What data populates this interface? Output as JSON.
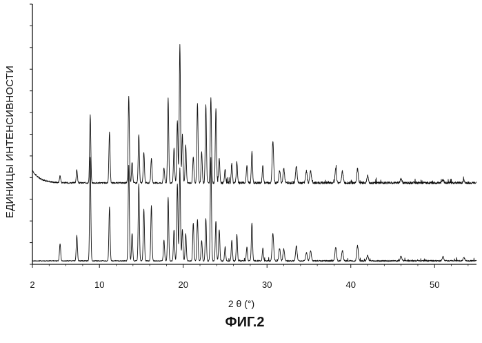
{
  "chart_data": {
    "type": "line",
    "title": "",
    "xlabel": "2 θ (°)",
    "ylabel": "ЕДИНИЦЫ ИНТЕНСИВНОСТИ",
    "xlim": [
      2,
      55
    ],
    "x_ticks": [
      2,
      10,
      20,
      30,
      40,
      50
    ],
    "x_tick_labels": [
      "2",
      "10",
      "20",
      "30",
      "40",
      "50"
    ],
    "grid": false,
    "legend": "none",
    "series": [
      {
        "baseline": 265,
        "peaks": [
          {
            "x": 5.3,
            "y": 10
          },
          {
            "x": 7.3,
            "y": 19
          },
          {
            "x": 8.9,
            "y": 98
          },
          {
            "x": 11.2,
            "y": 73
          },
          {
            "x": 13.5,
            "y": 125
          },
          {
            "x": 13.9,
            "y": 30
          },
          {
            "x": 14.7,
            "y": 70
          },
          {
            "x": 15.3,
            "y": 45
          },
          {
            "x": 16.2,
            "y": 35
          },
          {
            "x": 17.7,
            "y": 22
          },
          {
            "x": 18.2,
            "y": 123
          },
          {
            "x": 18.9,
            "y": 50
          },
          {
            "x": 19.3,
            "y": 90
          },
          {
            "x": 19.6,
            "y": 200
          },
          {
            "x": 19.9,
            "y": 70
          },
          {
            "x": 20.3,
            "y": 55
          },
          {
            "x": 21.2,
            "y": 38
          },
          {
            "x": 21.7,
            "y": 115
          },
          {
            "x": 22.2,
            "y": 45
          },
          {
            "x": 22.7,
            "y": 115
          },
          {
            "x": 23.3,
            "y": 125
          },
          {
            "x": 23.9,
            "y": 108
          },
          {
            "x": 24.3,
            "y": 35
          },
          {
            "x": 25.0,
            "y": 20
          },
          {
            "x": 25.8,
            "y": 27
          },
          {
            "x": 26.4,
            "y": 30
          },
          {
            "x": 27.6,
            "y": 25
          },
          {
            "x": 28.2,
            "y": 45
          },
          {
            "x": 29.5,
            "y": 25
          },
          {
            "x": 30.7,
            "y": 60
          },
          {
            "x": 31.5,
            "y": 18
          },
          {
            "x": 32.0,
            "y": 20
          },
          {
            "x": 33.5,
            "y": 25
          },
          {
            "x": 34.7,
            "y": 17
          },
          {
            "x": 35.2,
            "y": 18
          },
          {
            "x": 38.2,
            "y": 20
          },
          {
            "x": 39.0,
            "y": 17
          },
          {
            "x": 40.8,
            "y": 20
          },
          {
            "x": 42.0,
            "y": 10
          },
          {
            "x": 46.0,
            "y": 6
          },
          {
            "x": 51.0,
            "y": 5
          },
          {
            "x": 53.5,
            "y": 4
          }
        ]
      },
      {
        "baseline": 378,
        "peaks": [
          {
            "x": 5.3,
            "y": 25
          },
          {
            "x": 7.3,
            "y": 37
          },
          {
            "x": 8.9,
            "y": 150
          },
          {
            "x": 11.2,
            "y": 78
          },
          {
            "x": 13.5,
            "y": 138
          },
          {
            "x": 13.9,
            "y": 40
          },
          {
            "x": 14.7,
            "y": 112
          },
          {
            "x": 15.3,
            "y": 75
          },
          {
            "x": 16.2,
            "y": 80
          },
          {
            "x": 17.7,
            "y": 30
          },
          {
            "x": 18.2,
            "y": 92
          },
          {
            "x": 18.9,
            "y": 45
          },
          {
            "x": 19.3,
            "y": 112
          },
          {
            "x": 19.6,
            "y": 135
          },
          {
            "x": 19.9,
            "y": 45
          },
          {
            "x": 20.3,
            "y": 40
          },
          {
            "x": 21.2,
            "y": 55
          },
          {
            "x": 21.7,
            "y": 60
          },
          {
            "x": 22.2,
            "y": 30
          },
          {
            "x": 22.7,
            "y": 62
          },
          {
            "x": 23.3,
            "y": 150
          },
          {
            "x": 23.9,
            "y": 58
          },
          {
            "x": 24.3,
            "y": 45
          },
          {
            "x": 25.0,
            "y": 20
          },
          {
            "x": 25.8,
            "y": 30
          },
          {
            "x": 26.4,
            "y": 38
          },
          {
            "x": 27.6,
            "y": 20
          },
          {
            "x": 28.2,
            "y": 55
          },
          {
            "x": 29.5,
            "y": 18
          },
          {
            "x": 30.7,
            "y": 40
          },
          {
            "x": 31.5,
            "y": 18
          },
          {
            "x": 32.0,
            "y": 17
          },
          {
            "x": 33.5,
            "y": 22
          },
          {
            "x": 34.7,
            "y": 12
          },
          {
            "x": 35.2,
            "y": 15
          },
          {
            "x": 38.2,
            "y": 20
          },
          {
            "x": 39.0,
            "y": 15
          },
          {
            "x": 40.8,
            "y": 22
          },
          {
            "x": 42.0,
            "y": 8
          },
          {
            "x": 46.0,
            "y": 7
          },
          {
            "x": 51.0,
            "y": 6
          },
          {
            "x": 53.5,
            "y": 5
          }
        ]
      }
    ]
  },
  "figure_caption": "ФИГ.2"
}
